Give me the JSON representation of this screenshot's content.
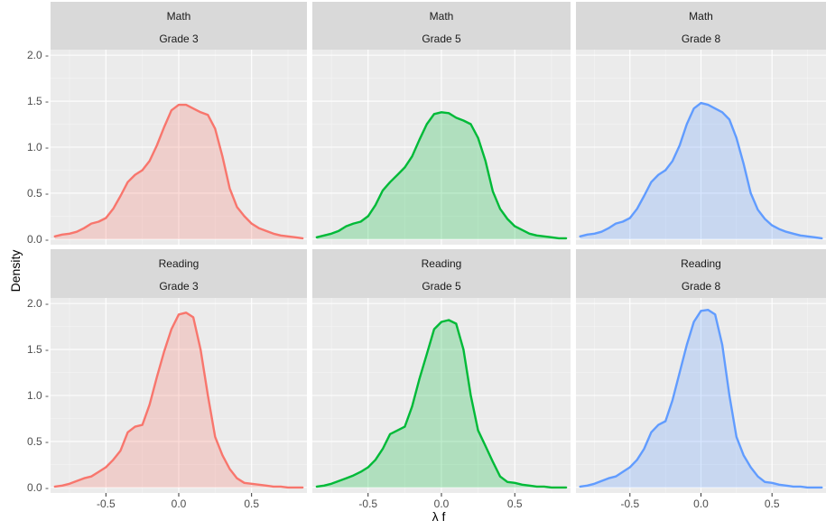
{
  "chart_data": {
    "type": "area",
    "xlabel": "λ f",
    "ylabel": "Density",
    "xlim": [
      -0.88,
      0.88
    ],
    "ylim": [
      -0.06,
      2.06
    ],
    "x_ticks": [
      -0.5,
      0.0,
      0.5
    ],
    "x_tick_labels": [
      "-0.5",
      "0.0",
      "0.5"
    ],
    "y_ticks": [
      0.0,
      0.5,
      1.0,
      1.5,
      2.0
    ],
    "y_tick_labels": [
      "0.0 -",
      "0.5 -",
      "1.0 -",
      "1.5 -",
      "2.0 -"
    ],
    "grid": true,
    "legend": "none",
    "colors": {
      "Grade 3": "#F8766D",
      "Grade 5": "#00BA38",
      "Grade 8": "#619CFF"
    },
    "facets": [
      {
        "subject": "Math",
        "grade": "Grade 3",
        "series": {
          "x": [
            -0.85,
            -0.8,
            -0.75,
            -0.7,
            -0.65,
            -0.6,
            -0.55,
            -0.5,
            -0.45,
            -0.4,
            -0.35,
            -0.3,
            -0.25,
            -0.2,
            -0.15,
            -0.1,
            -0.05,
            0.0,
            0.05,
            0.1,
            0.15,
            0.2,
            0.25,
            0.3,
            0.35,
            0.4,
            0.45,
            0.5,
            0.55,
            0.6,
            0.65,
            0.7,
            0.75,
            0.8,
            0.85
          ],
          "y": [
            0.03,
            0.05,
            0.06,
            0.08,
            0.12,
            0.17,
            0.19,
            0.23,
            0.33,
            0.47,
            0.62,
            0.7,
            0.75,
            0.85,
            1.02,
            1.22,
            1.4,
            1.46,
            1.46,
            1.42,
            1.38,
            1.35,
            1.2,
            0.9,
            0.55,
            0.35,
            0.25,
            0.17,
            0.12,
            0.09,
            0.06,
            0.04,
            0.03,
            0.02,
            0.01
          ]
        }
      },
      {
        "subject": "Math",
        "grade": "Grade 5",
        "series": {
          "x": [
            -0.85,
            -0.8,
            -0.75,
            -0.7,
            -0.65,
            -0.6,
            -0.55,
            -0.5,
            -0.45,
            -0.4,
            -0.35,
            -0.3,
            -0.25,
            -0.2,
            -0.15,
            -0.1,
            -0.05,
            0.0,
            0.05,
            0.1,
            0.15,
            0.2,
            0.25,
            0.3,
            0.35,
            0.4,
            0.45,
            0.5,
            0.55,
            0.6,
            0.65,
            0.7,
            0.75,
            0.8,
            0.85
          ],
          "y": [
            0.02,
            0.04,
            0.06,
            0.09,
            0.14,
            0.17,
            0.19,
            0.25,
            0.37,
            0.53,
            0.62,
            0.7,
            0.78,
            0.9,
            1.08,
            1.25,
            1.36,
            1.38,
            1.37,
            1.32,
            1.29,
            1.25,
            1.1,
            0.85,
            0.52,
            0.33,
            0.22,
            0.14,
            0.1,
            0.06,
            0.04,
            0.03,
            0.02,
            0.01,
            0.01
          ]
        }
      },
      {
        "subject": "Math",
        "grade": "Grade 8",
        "series": {
          "x": [
            -0.85,
            -0.8,
            -0.75,
            -0.7,
            -0.65,
            -0.6,
            -0.55,
            -0.5,
            -0.45,
            -0.4,
            -0.35,
            -0.3,
            -0.25,
            -0.2,
            -0.15,
            -0.1,
            -0.05,
            0.0,
            0.05,
            0.1,
            0.15,
            0.2,
            0.25,
            0.3,
            0.35,
            0.4,
            0.45,
            0.5,
            0.55,
            0.6,
            0.65,
            0.7,
            0.75,
            0.8,
            0.85
          ],
          "y": [
            0.03,
            0.05,
            0.06,
            0.08,
            0.12,
            0.17,
            0.19,
            0.23,
            0.33,
            0.47,
            0.62,
            0.7,
            0.75,
            0.85,
            1.02,
            1.25,
            1.42,
            1.48,
            1.46,
            1.42,
            1.38,
            1.3,
            1.1,
            0.82,
            0.5,
            0.32,
            0.22,
            0.15,
            0.11,
            0.08,
            0.06,
            0.04,
            0.03,
            0.02,
            0.01
          ]
        }
      },
      {
        "subject": "Reading",
        "grade": "Grade 3",
        "series": {
          "x": [
            -0.85,
            -0.8,
            -0.75,
            -0.7,
            -0.65,
            -0.6,
            -0.55,
            -0.5,
            -0.45,
            -0.4,
            -0.35,
            -0.3,
            -0.25,
            -0.2,
            -0.15,
            -0.1,
            -0.05,
            0.0,
            0.05,
            0.1,
            0.15,
            0.2,
            0.25,
            0.3,
            0.35,
            0.4,
            0.45,
            0.5,
            0.55,
            0.6,
            0.65,
            0.7,
            0.75,
            0.8,
            0.85
          ],
          "y": [
            0.01,
            0.02,
            0.04,
            0.07,
            0.1,
            0.12,
            0.17,
            0.22,
            0.3,
            0.4,
            0.6,
            0.66,
            0.68,
            0.9,
            1.2,
            1.48,
            1.72,
            1.88,
            1.9,
            1.85,
            1.5,
            1.0,
            0.55,
            0.35,
            0.2,
            0.1,
            0.05,
            0.04,
            0.03,
            0.02,
            0.01,
            0.01,
            0.0,
            0.0,
            0.0
          ]
        }
      },
      {
        "subject": "Reading",
        "grade": "Grade 5",
        "series": {
          "x": [
            -0.85,
            -0.8,
            -0.75,
            -0.7,
            -0.65,
            -0.6,
            -0.55,
            -0.5,
            -0.45,
            -0.4,
            -0.35,
            -0.3,
            -0.25,
            -0.2,
            -0.15,
            -0.1,
            -0.05,
            0.0,
            0.05,
            0.1,
            0.15,
            0.2,
            0.25,
            0.3,
            0.35,
            0.4,
            0.45,
            0.5,
            0.55,
            0.6,
            0.65,
            0.7,
            0.75,
            0.8,
            0.85
          ],
          "y": [
            0.01,
            0.02,
            0.04,
            0.07,
            0.1,
            0.13,
            0.17,
            0.22,
            0.3,
            0.42,
            0.58,
            0.62,
            0.66,
            0.88,
            1.18,
            1.45,
            1.72,
            1.8,
            1.82,
            1.78,
            1.5,
            1.0,
            0.62,
            0.45,
            0.28,
            0.12,
            0.06,
            0.05,
            0.03,
            0.02,
            0.01,
            0.01,
            0.0,
            0.0,
            0.0
          ]
        }
      },
      {
        "subject": "Reading",
        "grade": "Grade 8",
        "series": {
          "x": [
            -0.85,
            -0.8,
            -0.75,
            -0.7,
            -0.65,
            -0.6,
            -0.55,
            -0.5,
            -0.45,
            -0.4,
            -0.35,
            -0.3,
            -0.25,
            -0.2,
            -0.15,
            -0.1,
            -0.05,
            0.0,
            0.05,
            0.1,
            0.15,
            0.2,
            0.25,
            0.3,
            0.35,
            0.4,
            0.45,
            0.5,
            0.55,
            0.6,
            0.65,
            0.7,
            0.75,
            0.8,
            0.85
          ],
          "y": [
            0.01,
            0.02,
            0.04,
            0.07,
            0.1,
            0.12,
            0.17,
            0.22,
            0.3,
            0.42,
            0.6,
            0.68,
            0.72,
            0.95,
            1.25,
            1.55,
            1.8,
            1.92,
            1.93,
            1.88,
            1.55,
            1.0,
            0.55,
            0.35,
            0.22,
            0.12,
            0.06,
            0.05,
            0.03,
            0.02,
            0.01,
            0.01,
            0.0,
            0.0,
            0.0
          ]
        }
      }
    ]
  }
}
